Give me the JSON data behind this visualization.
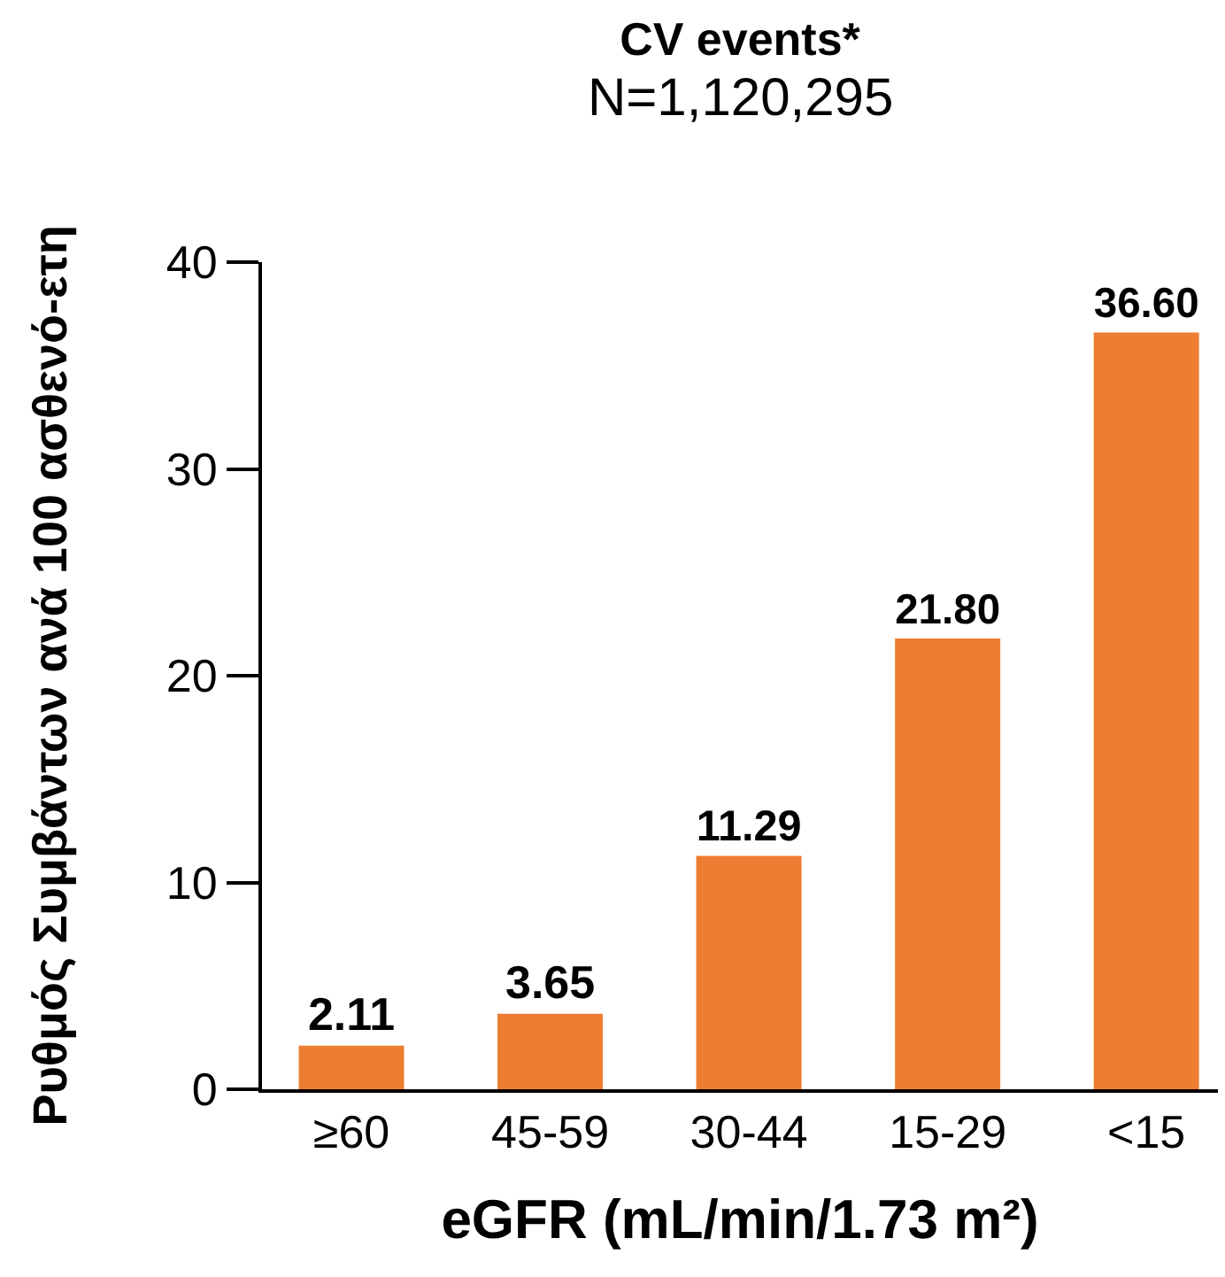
{
  "chart_data": {
    "type": "bar",
    "title": "CV events*",
    "subtitle": "N=1,120,295",
    "xlabel": "eGFR (mL/min/1.73 m²)",
    "ylabel": "Ρυθμός Συμβάντων ανά 100 ασθενό-ετη",
    "categories": [
      "≥60",
      "45-59",
      "30-44",
      "15-29",
      "<15"
    ],
    "values": [
      2.11,
      3.65,
      11.29,
      21.8,
      36.6
    ],
    "value_labels": [
      "2.11",
      "3.65",
      "11.29",
      "21.80",
      "36.60"
    ],
    "color": "#ed7d31",
    "ylim": [
      0,
      40
    ],
    "yticks": [
      0,
      10,
      20,
      30,
      40
    ]
  }
}
